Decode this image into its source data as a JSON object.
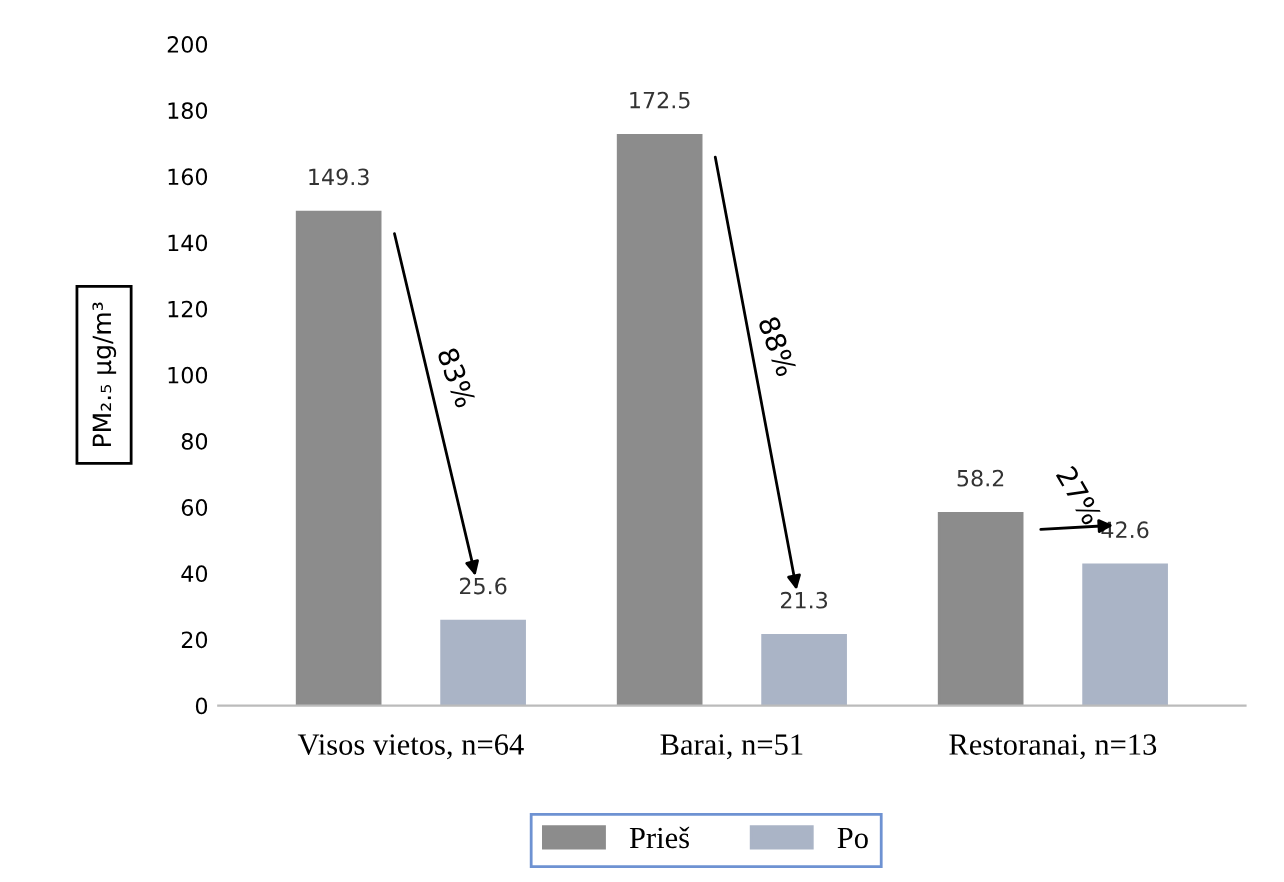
{
  "chart_data": {
    "type": "bar",
    "ylabel": "PM₂.₅ µg/m³",
    "categories": [
      "Visos vietos, n=64",
      "Barai, n=51",
      "Restoranai, n=13"
    ],
    "series": [
      {
        "name": "Prieš",
        "color": "#8c8c8c",
        "values": [
          149.3,
          172.5,
          58.2
        ]
      },
      {
        "name": "Po",
        "color": "#aab4c6",
        "values": [
          25.6,
          21.3,
          42.6
        ]
      }
    ],
    "ylim": [
      0,
      200
    ],
    "yticks": [
      0,
      20,
      40,
      60,
      80,
      100,
      120,
      140,
      160,
      180,
      200
    ],
    "data_labels": true,
    "grid": false,
    "legend": "bottom",
    "annotations": [
      "83%",
      "88%",
      "27%"
    ]
  }
}
